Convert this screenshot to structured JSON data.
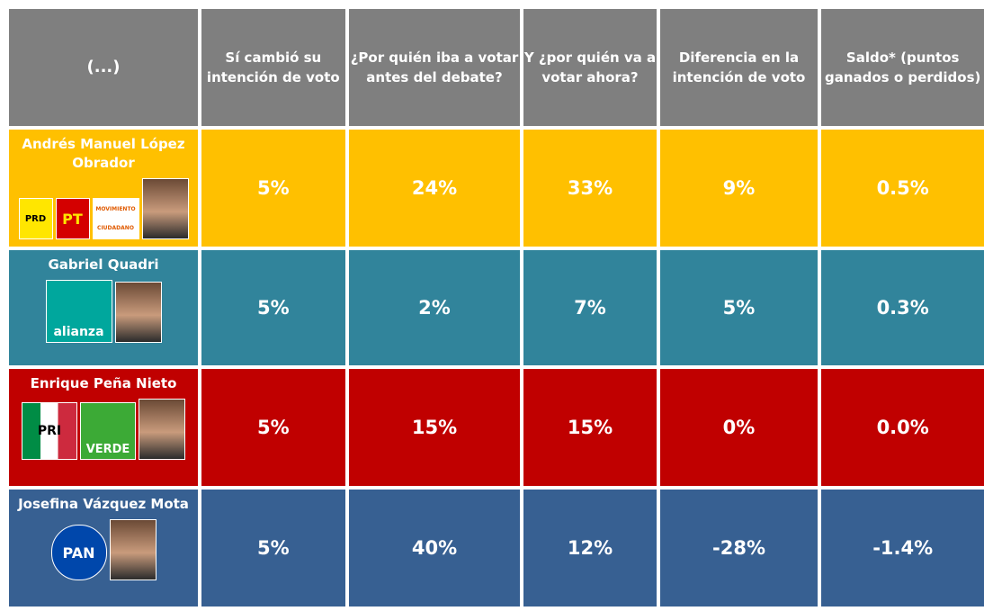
{
  "table": {
    "header": [
      "(...)",
      "Sí cambió su intención de voto",
      "¿Por quién iba a votar antes del debate?",
      "Y ¿por quién va a votar ahora?",
      "Diferencia en la intención de voto",
      "Saldo* (puntos ganados o perdidos)"
    ],
    "rows": [
      {
        "candidate": "Andrés Manuel López Obrador",
        "logos": [
          "PRD",
          "PT",
          "MOVIMIENTO CIUDADANO"
        ],
        "cells": [
          "5%",
          "24%",
          "33%",
          "9%",
          "0.5%"
        ]
      },
      {
        "candidate": "Gabriel Quadri",
        "logos": [
          "alianza"
        ],
        "cells": [
          "5%",
          "2%",
          "7%",
          "5%",
          "0.3%"
        ]
      },
      {
        "candidate": "Enrique Peña Nieto",
        "logos": [
          "PRI",
          "VERDE"
        ],
        "cells": [
          "5%",
          "15%",
          "15%",
          "0%",
          "0.0%"
        ]
      },
      {
        "candidate": "Josefina Vázquez Mota",
        "logos": [
          "PAN"
        ],
        "cells": [
          "5%",
          "40%",
          "12%",
          "-28%",
          "-1.4%"
        ]
      }
    ]
  }
}
